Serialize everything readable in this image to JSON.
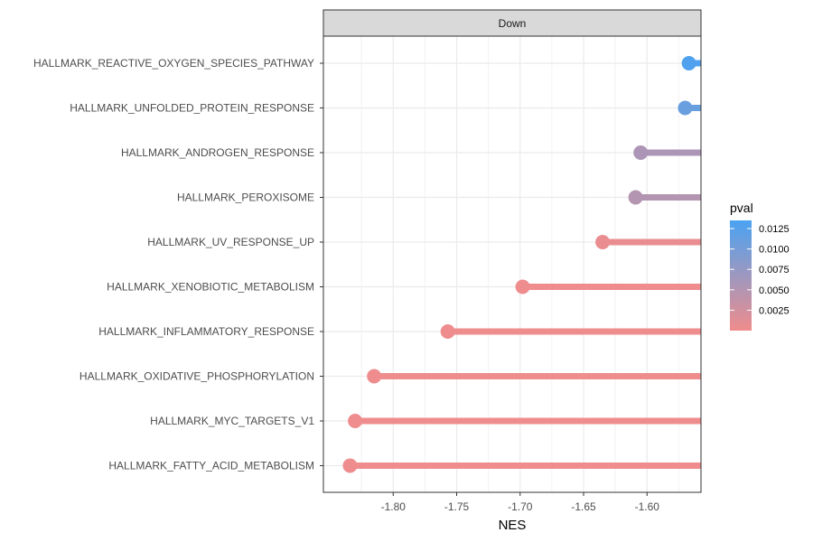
{
  "chart_data": {
    "type": "lollipop",
    "facet": "Down",
    "xlabel": "NES",
    "xlim": [
      -1.855,
      -1.5575
    ],
    "xticks": [
      -1.8,
      -1.75,
      -1.7,
      -1.65,
      -1.6
    ],
    "xtick_labels": [
      "-1.80",
      "-1.75",
      "-1.70",
      "-1.65",
      "-1.60"
    ],
    "grid": true,
    "legend": {
      "title": "pval",
      "position": "right",
      "range": [
        0,
        0.0135
      ],
      "ticks": [
        0.0025,
        0.005,
        0.0075,
        0.01,
        0.0125
      ],
      "tick_labels": [
        "0.0025",
        "0.0050",
        "0.0075",
        "0.0100",
        "0.0125"
      ],
      "low_color": "#F08C8C",
      "high_color": "#4AA3F2"
    },
    "points": [
      {
        "label": "HALLMARK_REACTIVE_OXYGEN_SPECIES_PATHWAY",
        "nes": -1.567,
        "pval": 0.013
      },
      {
        "label": "HALLMARK_UNFOLDED_PROTEIN_RESPONSE",
        "nes": -1.57,
        "pval": 0.011
      },
      {
        "label": "HALLMARK_ANDROGEN_RESPONSE",
        "nes": -1.605,
        "pval": 0.0055
      },
      {
        "label": "HALLMARK_PEROXISOME",
        "nes": -1.609,
        "pval": 0.005
      },
      {
        "label": "HALLMARK_UV_RESPONSE_UP",
        "nes": -1.635,
        "pval": 0.0005
      },
      {
        "label": "HALLMARK_XENOBIOTIC_METABOLISM",
        "nes": -1.698,
        "pval": 0.0002
      },
      {
        "label": "HALLMARK_INFLAMMATORY_RESPONSE",
        "nes": -1.757,
        "pval": 0.0001
      },
      {
        "label": "HALLMARK_OXIDATIVE_PHOSPHORYLATION",
        "nes": -1.815,
        "pval": 0.0001
      },
      {
        "label": "HALLMARK_MYC_TARGETS_V1",
        "nes": -1.83,
        "pval": 0.0001
      },
      {
        "label": "HALLMARK_FATTY_ACID_METABOLISM",
        "nes": -1.834,
        "pval": 0.0001
      }
    ]
  }
}
